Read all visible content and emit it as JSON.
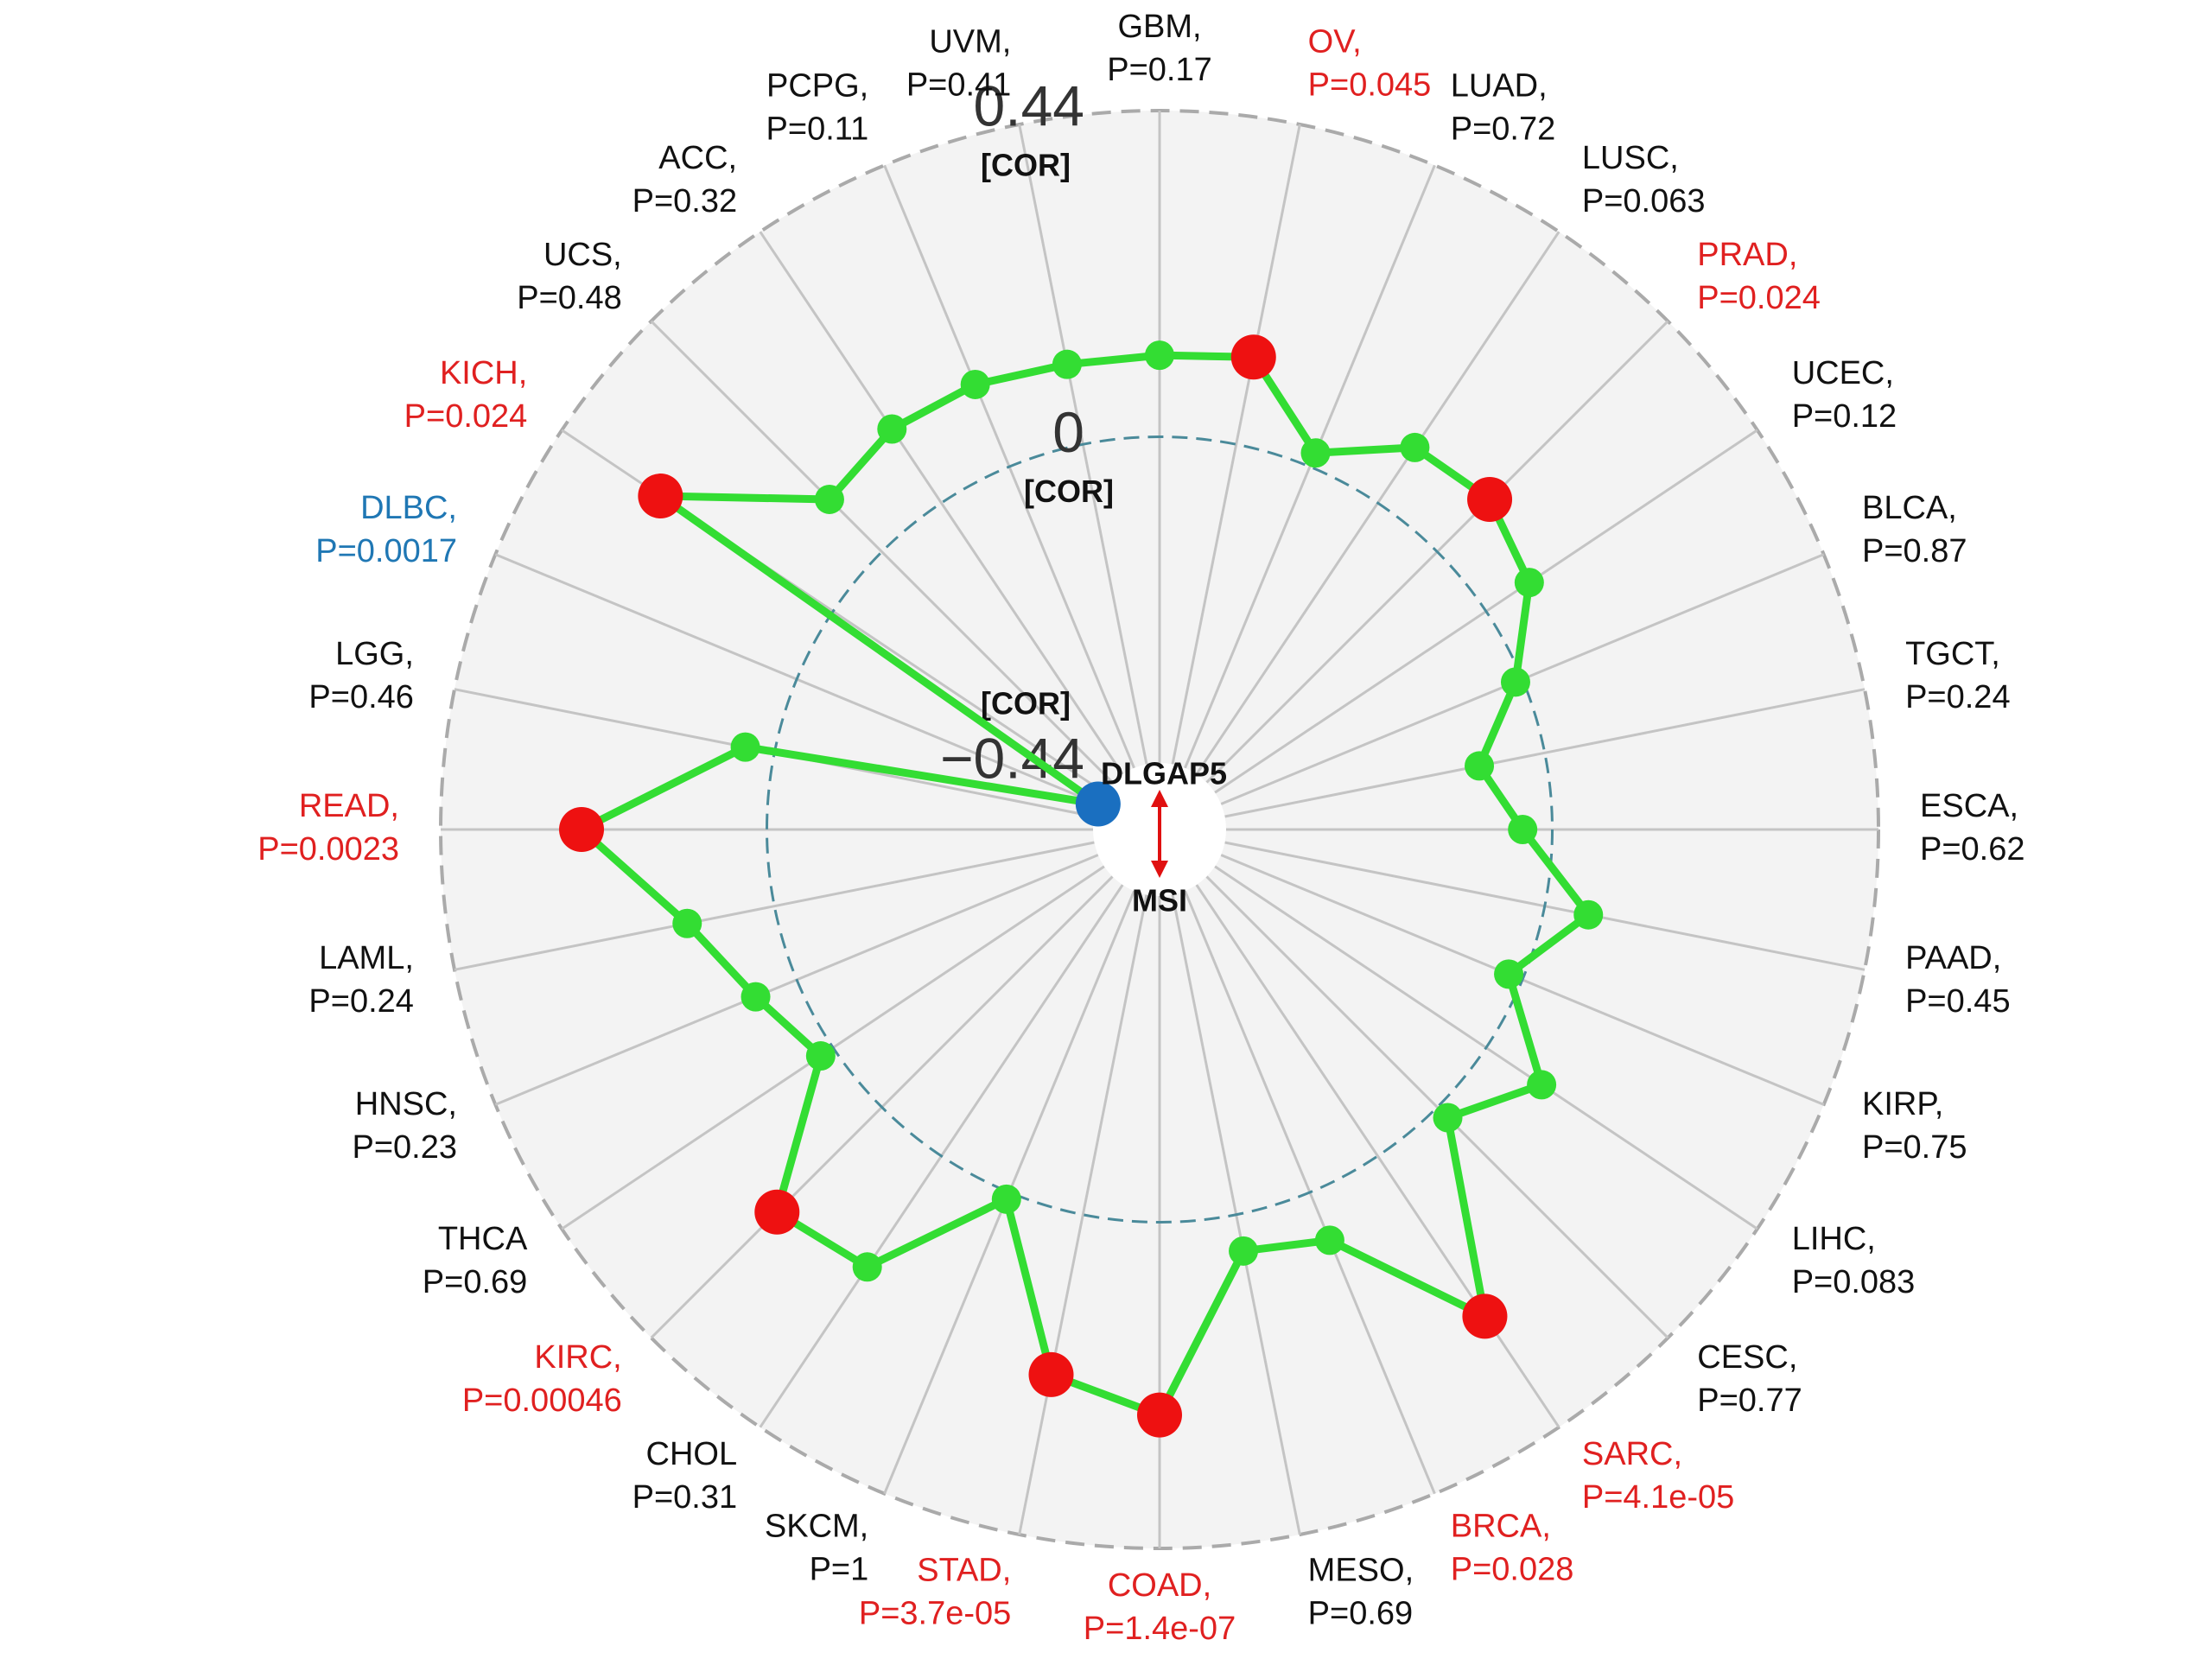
{
  "chart_data": {
    "type": "radar",
    "gene_label": "DLGAP5",
    "variable_label": "MSI",
    "axis_label": "[COR]",
    "categories": [
      "GBM,",
      "OV,",
      "LUAD,",
      "LUSC,",
      "PRAD,",
      "UCEC,",
      "BLCA,",
      "TGCT,",
      "ESCA,",
      "PAAD,",
      "KIRP,",
      "LIHC,",
      "CESC,",
      "SARC,",
      "BRCA,",
      "MESO,",
      "COAD,",
      "STAD,",
      "SKCM,",
      "CHOL",
      "KIRC,",
      "THCA",
      "HNSC,",
      "LAML,",
      "READ,",
      "LGG,",
      "DLBC,",
      "KICH,",
      "UCS,",
      "ACC,",
      "PCPG,",
      "UVM,"
    ],
    "p_labels": [
      "P=0.17",
      "P=0.045",
      "P=0.72",
      "P=0.063",
      "P=0.024",
      "P=0.12",
      "P=0.87",
      "P=0.24",
      "P=0.62",
      "P=0.45",
      "P=0.75",
      "P=0.083",
      "P=0.77",
      "P=4.1e-05",
      "P=0.028",
      "P=0.69",
      "P=1.4e-07",
      "P=3.7e-05",
      "P=1",
      "P=0.31",
      "P=0.00046",
      "P=0.69",
      "P=0.23",
      "P=0.24",
      "P=0.0023",
      "P=0.46",
      "P=0.0017",
      "P=0.024",
      "P=0.48",
      "P=0.32",
      "P=0.11",
      "P=0.41"
    ],
    "values": [
      0.11,
      0.12,
      0.02,
      0.09,
      0.1,
      0.07,
      -0.01,
      -0.09,
      -0.04,
      0.06,
      -0.02,
      0.09,
      0.02,
      0.26,
      0.07,
      0.05,
      0.26,
      0.22,
      0.01,
      0.18,
      0.2,
      0.02,
      0.06,
      0.12,
      0.25,
      0.04,
      -0.44,
      0.28,
      0.1,
      0.12,
      0.12,
      0.11
    ],
    "color": "#33dd33",
    "marker_colors": [
      "#33dd33",
      "#ee1111",
      "#33dd33",
      "#33dd33",
      "#ee1111",
      "#33dd33",
      "#33dd33",
      "#33dd33",
      "#33dd33",
      "#33dd33",
      "#33dd33",
      "#33dd33",
      "#33dd33",
      "#ee1111",
      "#33dd33",
      "#33dd33",
      "#ee1111",
      "#ee1111",
      "#33dd33",
      "#33dd33",
      "#ee1111",
      "#33dd33",
      "#33dd33",
      "#33dd33",
      "#ee1111",
      "#33dd33",
      "#1a6fc0",
      "#ee1111",
      "#33dd33",
      "#33dd33",
      "#33dd33",
      "#33dd33"
    ],
    "label_colors": [
      "#111111",
      "#e02020",
      "#111111",
      "#111111",
      "#e02020",
      "#111111",
      "#111111",
      "#111111",
      "#111111",
      "#111111",
      "#111111",
      "#111111",
      "#111111",
      "#e02020",
      "#e02020",
      "#111111",
      "#e02020",
      "#e02020",
      "#111111",
      "#111111",
      "#e02020",
      "#111111",
      "#111111",
      "#111111",
      "#e02020",
      "#111111",
      "#1f77b4",
      "#e02020",
      "#111111",
      "#111111",
      "#111111",
      "#111111"
    ],
    "ylim": [
      -0.44,
      0.44
    ],
    "yticks": [
      {
        "value": -0.44,
        "label": "−0.44"
      },
      0,
      0.44
    ],
    "grid": true
  }
}
